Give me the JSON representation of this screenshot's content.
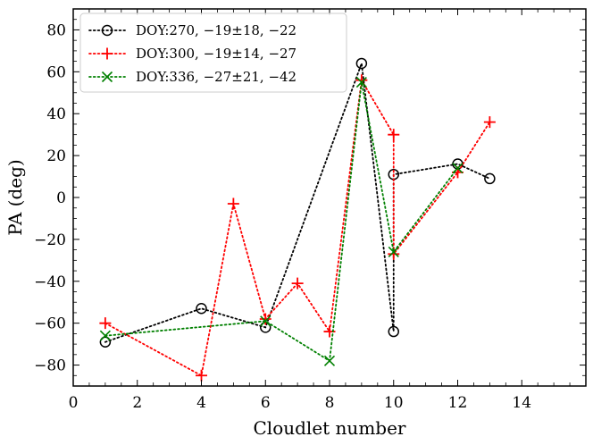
{
  "chart_data": {
    "type": "line",
    "title": "",
    "xlabel": "Cloudlet number",
    "ylabel": "PA (deg)",
    "xlim": [
      0,
      16
    ],
    "ylim": [
      -90,
      90
    ],
    "xticks": [
      0,
      2,
      4,
      6,
      8,
      10,
      12,
      14
    ],
    "yticks": [
      -80,
      -60,
      -40,
      -20,
      0,
      20,
      40,
      60,
      80
    ],
    "xtick_labels": [
      "0",
      "2",
      "4",
      "6",
      "8",
      "10",
      "12",
      "14"
    ],
    "ytick_labels": [
      "−80",
      "−60",
      "−40",
      "−20",
      "0",
      "20",
      "40",
      "60",
      "80"
    ],
    "grid": false,
    "legend_position": "top-left",
    "series": [
      {
        "name": "DOY:270, −19±18, −22",
        "color": "#000000",
        "marker": "circle",
        "x": [
          1,
          4,
          6,
          9,
          10,
          10,
          12,
          13
        ],
        "y": [
          -69,
          -53,
          -62,
          64,
          -64,
          11,
          16,
          9
        ]
      },
      {
        "name": "DOY:300, −19±14, −27",
        "color": "#ff0000",
        "marker": "plus",
        "x": [
          1,
          4,
          5,
          6,
          7,
          8,
          9,
          10,
          10,
          12,
          13
        ],
        "y": [
          -60,
          -85,
          -3,
          -58,
          -41,
          -64,
          56,
          30,
          -27,
          12,
          36
        ]
      },
      {
        "name": "DOY:336, −27±21, −42",
        "color": "#008000",
        "marker": "x",
        "x": [
          1,
          6,
          8,
          9,
          10,
          12
        ],
        "y": [
          -66,
          -59,
          -78,
          55,
          -26,
          14
        ]
      }
    ]
  }
}
